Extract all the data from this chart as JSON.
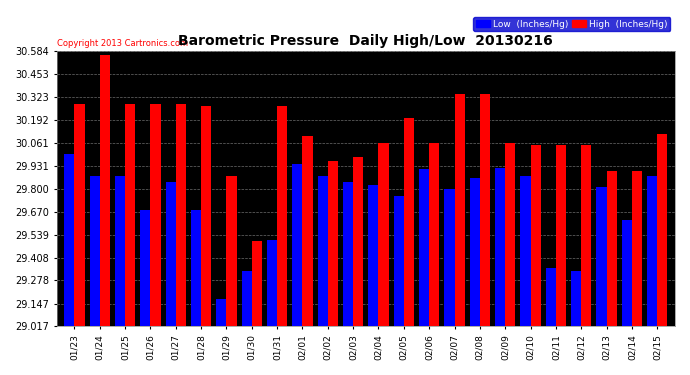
{
  "title": "Barometric Pressure  Daily High/Low  20130216",
  "copyright": "Copyright 2013 Cartronics.com",
  "ylim": [
    29.017,
    30.584
  ],
  "yticks": [
    29.017,
    29.147,
    29.278,
    29.408,
    29.539,
    29.67,
    29.8,
    29.931,
    30.061,
    30.192,
    30.323,
    30.453,
    30.584
  ],
  "dates": [
    "01/23",
    "01/24",
    "01/25",
    "01/26",
    "01/27",
    "01/28",
    "01/29",
    "01/30",
    "01/31",
    "02/01",
    "02/02",
    "02/03",
    "02/04",
    "02/05",
    "02/06",
    "02/07",
    "02/08",
    "02/09",
    "02/10",
    "02/11",
    "02/12",
    "02/13",
    "02/14",
    "02/15"
  ],
  "lows": [
    30.0,
    29.87,
    29.87,
    29.68,
    29.84,
    29.68,
    29.17,
    29.33,
    29.51,
    29.94,
    29.87,
    29.84,
    29.82,
    29.76,
    29.91,
    29.8,
    29.86,
    29.92,
    29.87,
    29.35,
    29.33,
    29.81,
    29.62,
    29.87
  ],
  "highs": [
    30.28,
    30.56,
    30.28,
    30.28,
    30.28,
    30.27,
    29.87,
    29.5,
    30.27,
    30.1,
    29.96,
    29.98,
    30.06,
    30.2,
    30.06,
    30.34,
    30.34,
    30.06,
    30.05,
    30.05,
    30.05,
    29.9,
    29.9,
    30.11
  ],
  "low_color": "#0000ff",
  "high_color": "#ff0000",
  "fig_bg_color": "#ffffff",
  "plot_bg_color": "#000000",
  "grid_color": "#888888",
  "ytext_color": "#000000",
  "xtext_color": "#000000",
  "title_color": "#000000",
  "copyright_color": "#ff0000",
  "legend_low_label": "Low  (Inches/Hg)",
  "legend_high_label": "High  (Inches/Hg)",
  "legend_bg_color": "#0000cc",
  "legend_text_color": "#ffffff",
  "bar_width": 0.4
}
